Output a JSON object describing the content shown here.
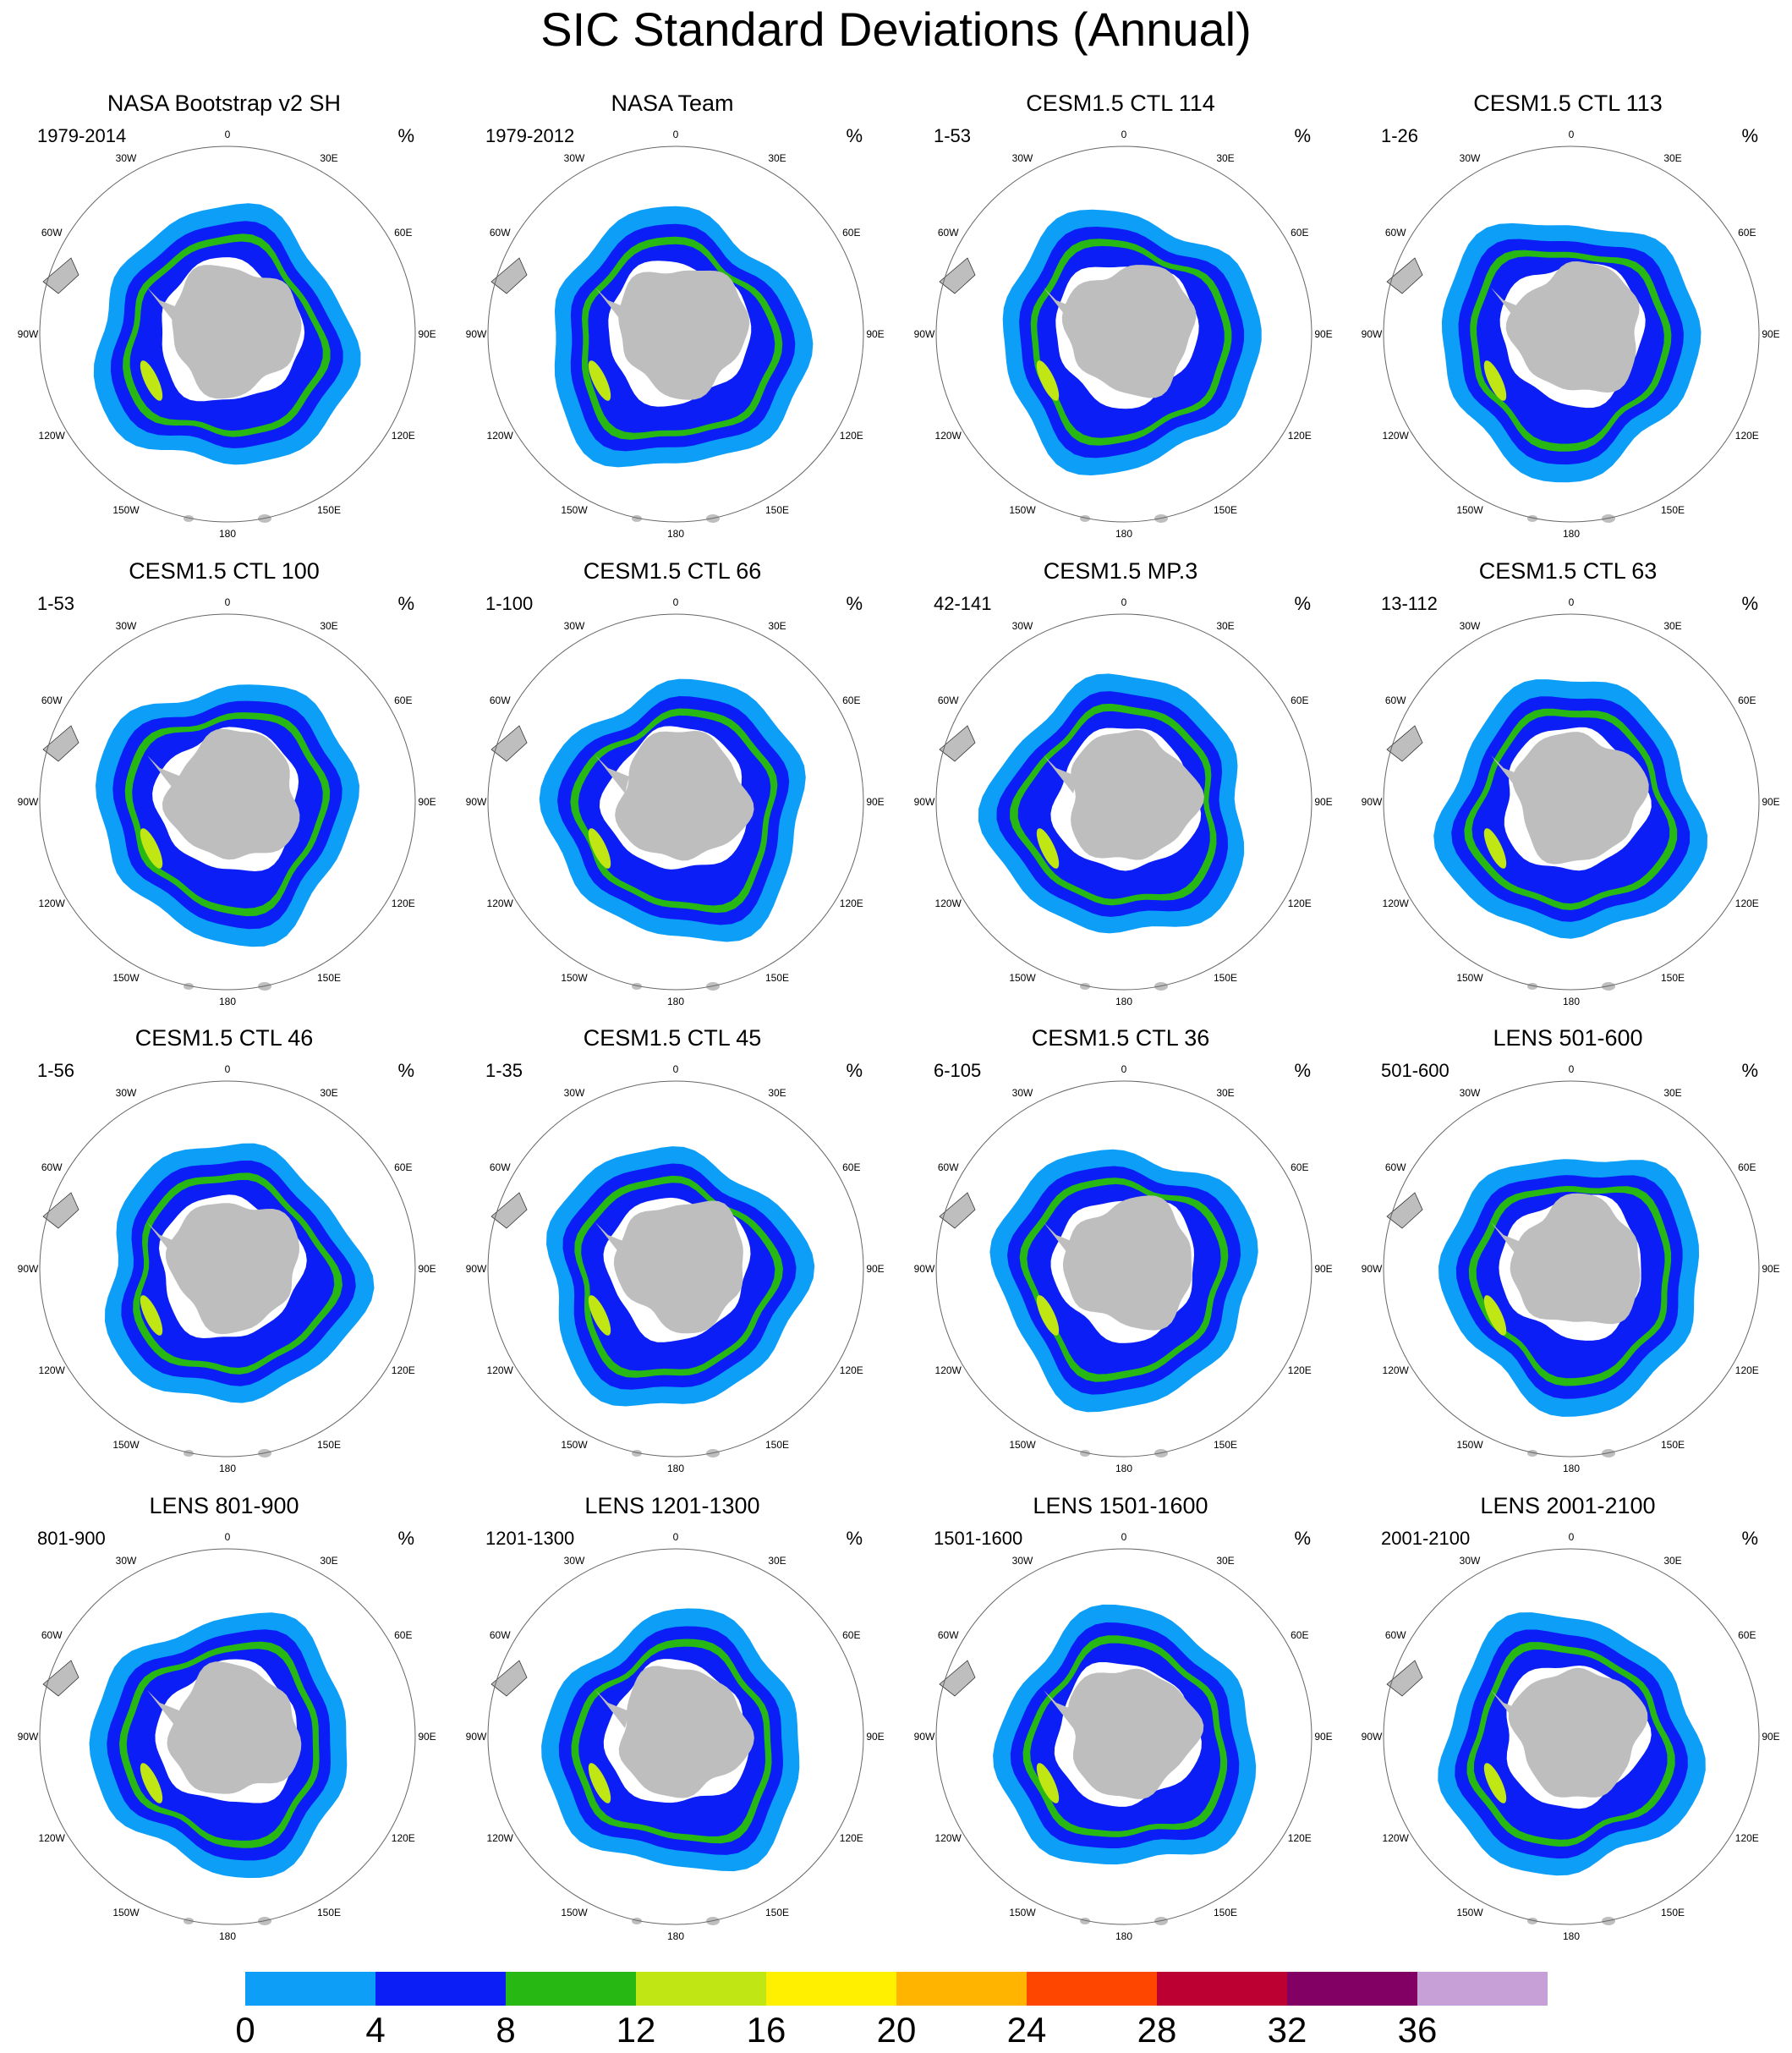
{
  "title": "SIC Standard Deviations (Annual)",
  "unit_label": "%",
  "longitude_labels": [
    "0",
    "30E",
    "60E",
    "90E",
    "120E",
    "150E",
    "180",
    "150W",
    "120W",
    "90W",
    "60W",
    "30W"
  ],
  "panels": [
    {
      "title": "NASA Bootstrap v2 SH",
      "period": "1979-2014"
    },
    {
      "title": "NASA Team",
      "period": "1979-2012"
    },
    {
      "title": "CESM1.5 CTL 114",
      "period": "1-53"
    },
    {
      "title": "CESM1.5 CTL 113",
      "period": "1-26"
    },
    {
      "title": "CESM1.5 CTL 100",
      "period": "1-53"
    },
    {
      "title": "CESM1.5 CTL 66",
      "period": "1-100"
    },
    {
      "title": "CESM1.5 MP.3",
      "period": "42-141"
    },
    {
      "title": "CESM1.5 CTL 63",
      "period": "13-112"
    },
    {
      "title": "CESM1.5 CTL 46",
      "period": "1-56"
    },
    {
      "title": "CESM1.5 CTL 45",
      "period": "1-35"
    },
    {
      "title": "CESM1.5 CTL 36",
      "period": "6-105"
    },
    {
      "title": "LENS 501-600",
      "period": "501-600"
    },
    {
      "title": "LENS 801-900",
      "period": "801-900"
    },
    {
      "title": "LENS 1201-1300",
      "period": "1201-1300"
    },
    {
      "title": "LENS 1501-1600",
      "period": "1501-1600"
    },
    {
      "title": "LENS 2001-2100",
      "period": "2001-2100"
    }
  ],
  "colorbar": {
    "labels": [
      "0",
      "4",
      "8",
      "12",
      "16",
      "20",
      "24",
      "28",
      "32",
      "36"
    ],
    "colors": [
      "#0d9ef8",
      "#0a1ef5",
      "#28b814",
      "#c0e614",
      "#fff000",
      "#ffb400",
      "#ff4600",
      "#bc0032",
      "#820064",
      "#c8a0d8"
    ]
  },
  "map_colors": {
    "land": "#bebebe",
    "shelf": "#ffffff",
    "band_0_4": "#0d9ef8",
    "band_4_8": "#0a1ef5",
    "band_8_12": "#28b814",
    "band_12_16": "#c0e614"
  }
}
